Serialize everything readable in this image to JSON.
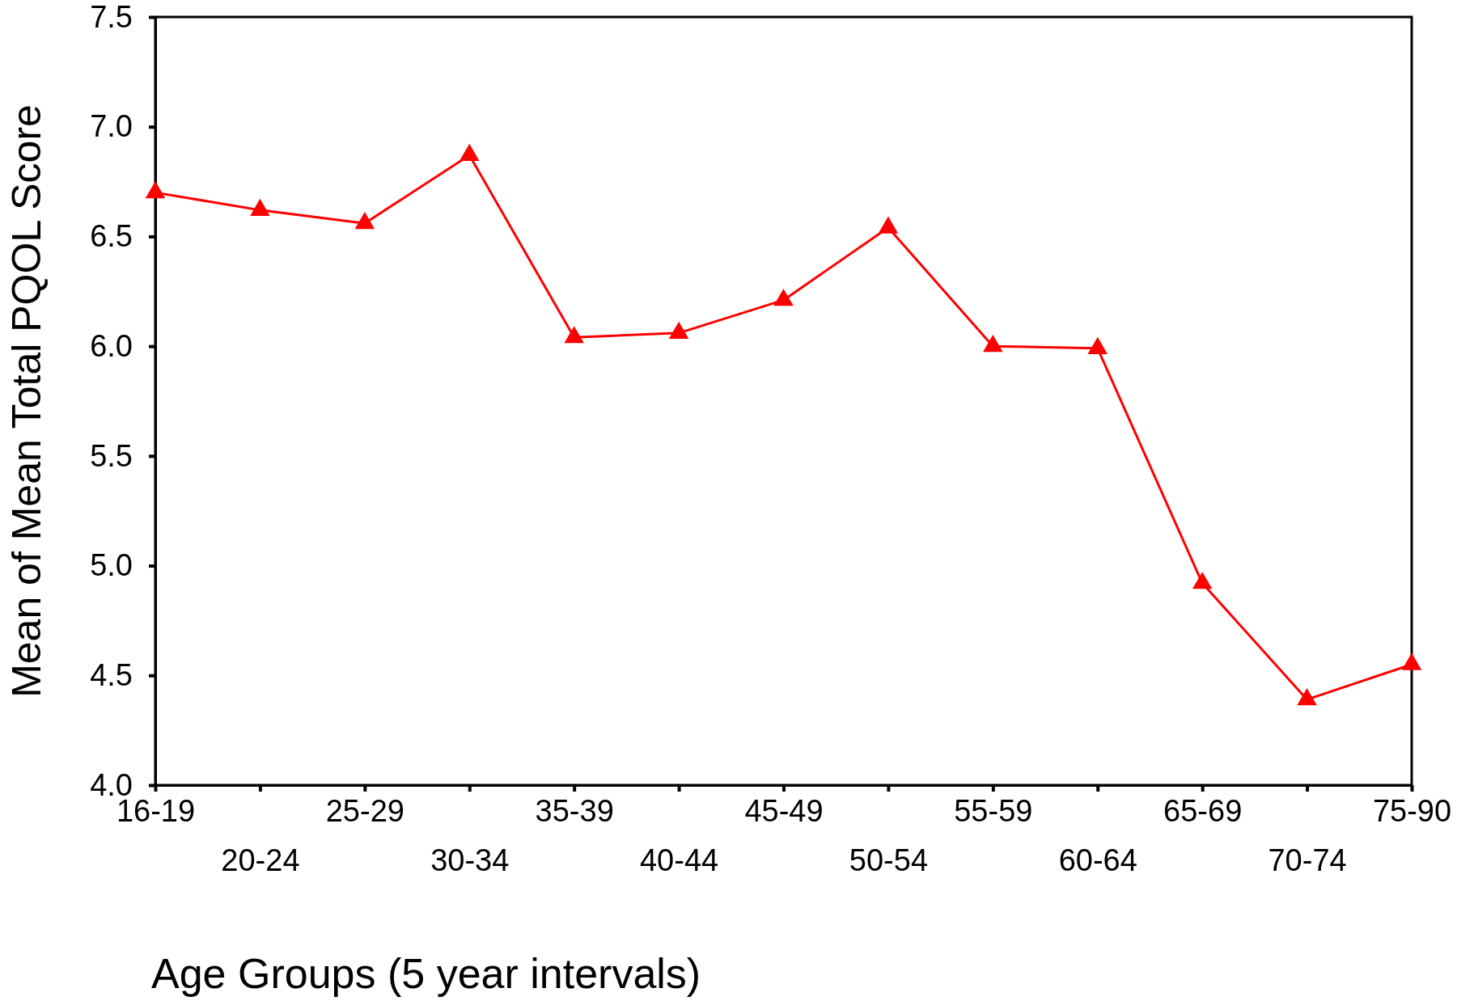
{
  "chart_data": {
    "type": "line",
    "xlabel": "Age Groups (5 year intervals)",
    "ylabel": "Mean of Mean Total PQOL Score",
    "categories": [
      "16-19",
      "20-24",
      "25-29",
      "30-34",
      "35-39",
      "40-44",
      "45-49",
      "50-54",
      "55-59",
      "60-64",
      "65-69",
      "70-74",
      "75-90"
    ],
    "series": [
      {
        "color": "#ff0000",
        "values": [
          6.7,
          6.62,
          6.56,
          6.87,
          6.04,
          6.06,
          6.21,
          6.54,
          6.0,
          5.99,
          4.92,
          4.39,
          4.55
        ]
      }
    ],
    "ylim": [
      4.0,
      7.5
    ],
    "yticks": [
      {
        "value": 4.0,
        "label": "4.0"
      },
      {
        "value": 4.5,
        "label": "4.5"
      },
      {
        "value": 5.0,
        "label": "5.0"
      },
      {
        "value": 5.5,
        "label": "5.5"
      },
      {
        "value": 6.0,
        "label": "6.0"
      },
      {
        "value": 6.5,
        "label": "6.5"
      },
      {
        "value": 7.0,
        "label": "7.0"
      },
      {
        "value": 7.5,
        "label": "7.5"
      }
    ],
    "marker": "triangle",
    "line_style": "solid",
    "grid": false
  }
}
